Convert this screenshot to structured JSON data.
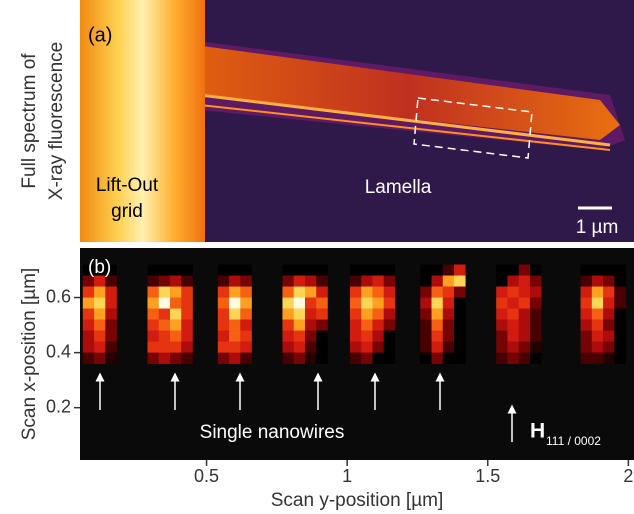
{
  "chart_data": [
    {
      "type": "image",
      "label": "(a)",
      "ylabel": [
        "Full spectrum of",
        "X-ray fluorescence"
      ],
      "annotations": [
        "Lift-Out",
        "grid",
        "Lamella"
      ],
      "scale_bar": "1 µm"
    },
    {
      "type": "heatmap",
      "label": "(b)",
      "xlabel": "Scan y-position [µm]",
      "ylabel": "Scan x-position [µm]",
      "xlim": [
        0.05,
        2.02
      ],
      "ylim": [
        0.01,
        0.78
      ],
      "xticks": [
        0.5,
        1,
        1.5,
        2
      ],
      "yticks": [
        0.2,
        0.4,
        0.6
      ],
      "annotations": [
        "Single nanowires"
      ],
      "reflection": {
        "symbol": "H",
        "subscript": "111 / 0002"
      },
      "x": [
        0.08,
        0.12,
        0.16,
        0.31,
        0.35,
        0.39,
        0.43,
        0.56,
        0.6,
        0.64,
        0.79,
        0.83,
        0.87,
        0.91,
        1.03,
        1.07,
        1.11,
        1.15,
        1.28,
        1.32,
        1.36,
        1.4,
        1.55,
        1.59,
        1.63,
        1.67,
        1.85,
        1.89,
        1.93,
        1.97
      ],
      "y": [
        0.7,
        0.66,
        0.62,
        0.58,
        0.54,
        0.5,
        0.46,
        0.42,
        0.38
      ],
      "z": [
        [
          0,
          0,
          0,
          0,
          0,
          0,
          0,
          0,
          0,
          0,
          0,
          0,
          0,
          0,
          0,
          0,
          0,
          0,
          0,
          0,
          0.2,
          0.5,
          0,
          0,
          0.3,
          0,
          0,
          0,
          0,
          0
        ],
        [
          0.3,
          0.5,
          0.2,
          0.2,
          0.3,
          0.4,
          0.2,
          0.2,
          0.4,
          0.3,
          0.3,
          0.5,
          0.4,
          0.2,
          0.2,
          0.4,
          0.5,
          0.3,
          0,
          0.4,
          0.8,
          0.9,
          0,
          0.4,
          0.5,
          0.3,
          0.2,
          0.4,
          0.3,
          0
        ],
        [
          0.6,
          0.8,
          0.5,
          0.7,
          0.9,
          0.8,
          0.6,
          0.6,
          0.8,
          0.7,
          0.7,
          0.9,
          0.8,
          0.5,
          0.6,
          0.8,
          0.7,
          0.5,
          0.3,
          0.7,
          0.6,
          0.3,
          0.5,
          0.6,
          0.5,
          0.4,
          0.5,
          0.8,
          0.6,
          0.2
        ],
        [
          0.8,
          0.9,
          0.5,
          0.8,
          1,
          0.7,
          0.6,
          0.7,
          1,
          0.8,
          0.9,
          1,
          0.6,
          0.7,
          0.7,
          0.9,
          0.8,
          0.6,
          0.4,
          0.9,
          0.5,
          0,
          0.6,
          0.5,
          0.6,
          0.3,
          0.6,
          0.9,
          0.5,
          0.2
        ],
        [
          0.6,
          0.8,
          0.4,
          0.7,
          0.6,
          0.9,
          0.6,
          0.6,
          0.9,
          0.7,
          0.8,
          0.9,
          0.5,
          0.6,
          0.6,
          0.8,
          0.7,
          0.4,
          0.3,
          0.8,
          0.4,
          0,
          0.5,
          0.6,
          0.4,
          0.2,
          0.5,
          0.7,
          0.4,
          0
        ],
        [
          0.5,
          0.7,
          0.3,
          0.6,
          0.7,
          0.8,
          0.5,
          0.6,
          0.7,
          0.5,
          0.6,
          0.8,
          0.4,
          0.3,
          0.5,
          0.7,
          0.5,
          0.3,
          0.2,
          0.7,
          0.3,
          0,
          0.4,
          0.5,
          0.4,
          0.2,
          0.4,
          0.6,
          0.3,
          0
        ],
        [
          0.4,
          0.6,
          0.3,
          0.5,
          0.6,
          0.7,
          0.5,
          0.5,
          0.7,
          0.6,
          0.5,
          0.6,
          0.3,
          0,
          0.5,
          0.6,
          0.4,
          0,
          0.2,
          0.6,
          0.3,
          0,
          0.3,
          0.5,
          0.4,
          0.2,
          0.3,
          0.5,
          0.4,
          0
        ],
        [
          0.4,
          0.5,
          0.2,
          0.6,
          0.6,
          0.6,
          0.4,
          0.6,
          0.6,
          0.5,
          0.4,
          0.5,
          0.2,
          0,
          0.4,
          0.5,
          0.3,
          0,
          0.2,
          0.5,
          0.2,
          0,
          0.3,
          0.4,
          0.3,
          0.1,
          0.3,
          0.4,
          0.3,
          0
        ],
        [
          0.2,
          0.3,
          0.1,
          0.3,
          0.4,
          0.3,
          0.2,
          0.3,
          0.4,
          0.2,
          0.2,
          0.3,
          0.1,
          0,
          0.2,
          0.3,
          0,
          0,
          0,
          0.3,
          0,
          0,
          0.2,
          0.3,
          0.2,
          0,
          0.2,
          0.2,
          0.1,
          0
        ]
      ]
    }
  ]
}
